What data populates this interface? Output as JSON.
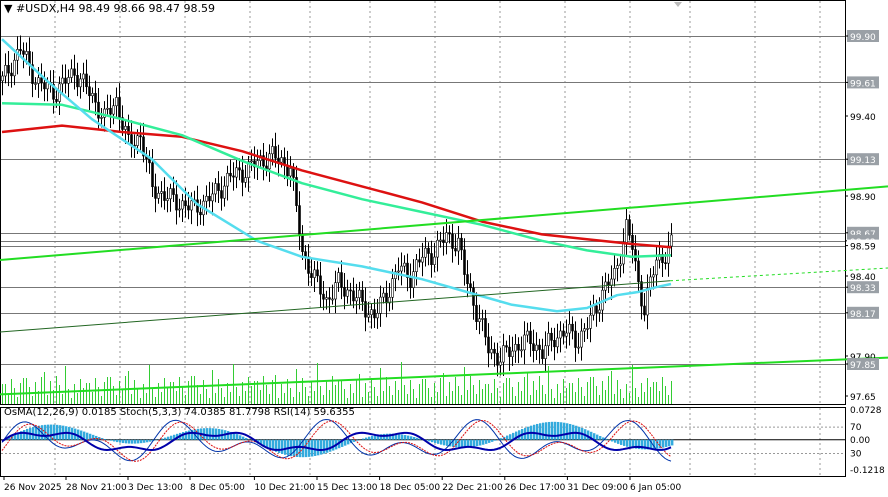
{
  "header": {
    "symbol_label": "#USDX,H4",
    "ohlc": "98.49 98.66 98.47 98.59"
  },
  "indicator_header": "OsMA(12,26,9) 0.0185  Stoch(5,3,3) 74.0385 81.7798  RSI(14) 59.6355",
  "colors": {
    "candle": "#000000",
    "ma_fast": "#55ddee",
    "ma_mid": "#33ee99",
    "ma_slow": "#dd1111",
    "trendline": "#22dd22",
    "trendline_dark": "#226622",
    "grid": "#999999",
    "level_line": "#777777",
    "price_box": "#9aa0a6",
    "osma": "#33aadd",
    "stoch_main": "#0033aa",
    "stoch_signal": "#dd1111",
    "rsi": "#7733cc"
  },
  "chart_data": {
    "type": "candlestick",
    "price_axis_labels": [
      "99.90",
      "99.61",
      "99.40",
      "99.13",
      "98.90",
      "98.67",
      "98.62",
      "98.59",
      "98.40",
      "98.33",
      "98.17",
      "97.90",
      "97.85",
      "97.65"
    ],
    "highlighted_levels": [
      "99.90",
      "99.61",
      "99.13",
      "98.67",
      "98.62",
      "98.59",
      "98.33",
      "98.17",
      "97.85"
    ],
    "current_price": "98.59",
    "time_axis_labels": [
      "26 Nov 2025",
      "28 Nov 21:00",
      "3 Dec 13:00",
      "8 Dec 05:00",
      "10 Dec 21:00",
      "15 Dec 13:00",
      "18 Dec 05:00",
      "22 Dec 21:00",
      "26 Dec 17:00",
      "31 Dec 09:00",
      "6 Jan 05:00"
    ],
    "ylim": [
      97.6,
      100.05
    ],
    "close_path": [
      [
        0,
        99.62
      ],
      [
        6,
        99.82
      ],
      [
        12,
        99.6
      ],
      [
        18,
        99.55
      ],
      [
        24,
        99.68
      ],
      [
        30,
        99.52
      ],
      [
        34,
        99.38
      ],
      [
        38,
        99.5
      ],
      [
        42,
        99.22
      ],
      [
        46,
        99.28
      ],
      [
        50,
        98.95
      ],
      [
        56,
        98.88
      ],
      [
        64,
        98.82
      ],
      [
        70,
        98.9
      ],
      [
        76,
        99.02
      ],
      [
        80,
        99.05
      ],
      [
        86,
        99.12
      ],
      [
        90,
        99.15
      ],
      [
        96,
        99.08
      ],
      [
        100,
        98.55
      ],
      [
        104,
        98.38
      ],
      [
        108,
        98.25
      ],
      [
        112,
        98.35
      ],
      [
        116,
        98.3
      ],
      [
        120,
        98.22
      ],
      [
        124,
        98.15
      ],
      [
        128,
        98.28
      ],
      [
        132,
        98.45
      ],
      [
        136,
        98.4
      ],
      [
        140,
        98.52
      ],
      [
        144,
        98.55
      ],
      [
        148,
        98.65
      ],
      [
        152,
        98.6
      ],
      [
        154,
        98.42
      ],
      [
        158,
        98.18
      ],
      [
        162,
        97.95
      ],
      [
        166,
        97.88
      ],
      [
        170,
        97.95
      ],
      [
        176,
        98.0
      ],
      [
        180,
        97.92
      ],
      [
        184,
        98.02
      ],
      [
        188,
        98.05
      ],
      [
        192,
        98.0
      ],
      [
        196,
        98.12
      ],
      [
        200,
        98.3
      ],
      [
        204,
        98.4
      ],
      [
        206,
        98.55
      ],
      [
        208,
        98.7
      ],
      [
        210,
        98.58
      ],
      [
        212,
        98.35
      ],
      [
        214,
        98.2
      ],
      [
        216,
        98.35
      ],
      [
        218,
        98.5
      ],
      [
        220,
        98.52
      ],
      [
        222,
        98.56
      ],
      [
        223,
        98.59
      ]
    ],
    "n_bars": 224,
    "ma_fast": [
      [
        0,
        99.88
      ],
      [
        15,
        99.62
      ],
      [
        30,
        99.38
      ],
      [
        50,
        99.13
      ],
      [
        65,
        98.85
      ],
      [
        85,
        98.62
      ],
      [
        100,
        98.52
      ],
      [
        120,
        98.46
      ],
      [
        140,
        98.38
      ],
      [
        155,
        98.3
      ],
      [
        170,
        98.22
      ],
      [
        185,
        98.18
      ],
      [
        195,
        98.2
      ],
      [
        205,
        98.28
      ],
      [
        212,
        98.3
      ],
      [
        218,
        98.33
      ],
      [
        223,
        98.35
      ]
    ],
    "ma_mid": [
      [
        0,
        99.48
      ],
      [
        20,
        99.47
      ],
      [
        40,
        99.38
      ],
      [
        60,
        99.28
      ],
      [
        80,
        99.12
      ],
      [
        100,
        98.98
      ],
      [
        120,
        98.88
      ],
      [
        140,
        98.8
      ],
      [
        160,
        98.72
      ],
      [
        180,
        98.62
      ],
      [
        195,
        98.56
      ],
      [
        210,
        98.52
      ],
      [
        223,
        98.53
      ]
    ],
    "ma_slow": [
      [
        0,
        99.3
      ],
      [
        20,
        99.34
      ],
      [
        40,
        99.3
      ],
      [
        60,
        99.27
      ],
      [
        80,
        99.18
      ],
      [
        100,
        99.06
      ],
      [
        120,
        98.96
      ],
      [
        140,
        98.86
      ],
      [
        160,
        98.74
      ],
      [
        180,
        98.66
      ],
      [
        195,
        98.63
      ],
      [
        210,
        98.6
      ],
      [
        223,
        98.58
      ]
    ],
    "trendline_upper": [
      [
        0,
        98.5
      ],
      [
        888,
        98.96
      ]
    ],
    "trendline_lower": [
      [
        0,
        97.66
      ],
      [
        888,
        97.89
      ]
    ],
    "trendline_dark": [
      [
        0,
        98.05
      ],
      [
        670,
        98.37
      ]
    ],
    "trendline_dotted": [
      [
        670,
        98.37
      ],
      [
        888,
        98.45
      ]
    ],
    "osc_axis_labels": [
      "0.0728",
      "70",
      "0.00",
      "30",
      "-0.1218"
    ],
    "osc_upper_label": "0.0728",
    "osc_lower_label": "-0.1218",
    "osc_mid_label": "0.00",
    "osc_level_70": "70",
    "osc_level_30": "30"
  }
}
